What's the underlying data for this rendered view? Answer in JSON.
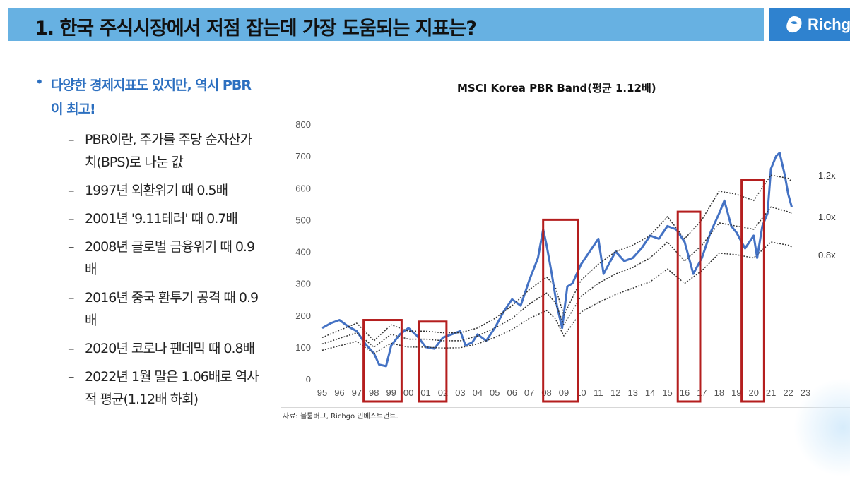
{
  "header": {
    "title": "1. 한국 주식시장에서 저점 잡는데 가장 도움되는 지표는?",
    "logo_text": "Richgo"
  },
  "bullets": {
    "main": "다양한 경제지표도 있지만, 역시 PBR이 최고!",
    "sub": [
      "PBR이란, 주가를 주당 순자산가치(BPS)로 나눈 값",
      "1997년 외환위기 때 0.5배",
      "2001년 '9.11테러' 때 0.7배",
      "2008년 글로벌 금융위기 때 0.9배",
      "2016년 중국 환투기 공격 때 0.9배",
      "2020년 코로나 팬데믹 때 0.8배",
      "2022년 1월 말은 1.06배로 역사적 평균(1.12배 하회)"
    ]
  },
  "source": "자료: 블룸버그, Richgo 인베스트먼트.",
  "colors": {
    "title_bar": "#67b1e2",
    "logo_bg": "#2f82cf",
    "accent_text": "#2c6fc0",
    "series_line": "#4472c4",
    "highlight_box": "#b41e1e"
  },
  "chart_data": {
    "type": "line",
    "title": "MSCI Korea PBR Band(평균 1.12배)",
    "xlabel": "",
    "ylabel": "",
    "ylim": [
      0,
      800
    ],
    "yticks": [
      0,
      100,
      200,
      300,
      400,
      500,
      600,
      700,
      800
    ],
    "xlim": [
      1995,
      2023
    ],
    "xtick_labels": [
      "95",
      "96",
      "97",
      "98",
      "99",
      "00",
      "01",
      "02",
      "03",
      "04",
      "05",
      "06",
      "07",
      "08",
      "09",
      "10",
      "11",
      "12",
      "13",
      "14",
      "15",
      "16",
      "17",
      "18",
      "19",
      "20",
      "21",
      "22",
      "23"
    ],
    "grid": false,
    "series": [
      {
        "name": "MSCI Korea",
        "style": "solid",
        "x": [
          1995.0,
          1995.5,
          1996.0,
          1996.5,
          1997.0,
          1997.5,
          1998.0,
          1998.3,
          1998.7,
          1999.0,
          1999.5,
          2000.0,
          2000.5,
          2001.0,
          2001.5,
          2002.0,
          2002.5,
          2003.0,
          2003.3,
          2003.7,
          2004.0,
          2004.5,
          2005.0,
          2005.5,
          2006.0,
          2006.5,
          2007.0,
          2007.5,
          2007.8,
          2008.0,
          2008.3,
          2008.6,
          2008.9,
          2009.2,
          2009.5,
          2010.0,
          2010.5,
          2011.0,
          2011.3,
          2011.7,
          2012.0,
          2012.5,
          2013.0,
          2013.5,
          2014.0,
          2014.5,
          2015.0,
          2015.5,
          2016.0,
          2016.5,
          2017.0,
          2017.5,
          2018.0,
          2018.3,
          2018.7,
          2019.0,
          2019.5,
          2020.0,
          2020.2,
          2020.5,
          2020.8,
          2021.0,
          2021.3,
          2021.5,
          2021.8,
          2022.0,
          2022.2
        ],
        "y": [
          160,
          175,
          185,
          165,
          150,
          110,
          80,
          45,
          40,
          105,
          140,
          160,
          135,
          100,
          95,
          130,
          140,
          150,
          105,
          115,
          140,
          120,
          160,
          210,
          250,
          230,
          310,
          380,
          470,
          420,
          330,
          230,
          160,
          290,
          300,
          360,
          400,
          440,
          330,
          370,
          400,
          370,
          380,
          410,
          450,
          440,
          480,
          470,
          430,
          330,
          380,
          460,
          520,
          560,
          480,
          460,
          410,
          450,
          380,
          480,
          520,
          660,
          700,
          710,
          640,
          580,
          540
        ]
      },
      {
        "name": "1.2x",
        "style": "dotted",
        "x": [
          1995.0,
          1997.0,
          1998.0,
          1999.0,
          2000.0,
          2001.0,
          2002.0,
          2003.0,
          2004.0,
          2005.0,
          2006.0,
          2007.0,
          2008.0,
          2008.5,
          2009.0,
          2010.0,
          2011.0,
          2012.0,
          2013.0,
          2014.0,
          2015.0,
          2016.0,
          2017.0,
          2018.0,
          2019.0,
          2020.0,
          2021.0,
          2022.0,
          2022.2
        ],
        "y": [
          130,
          175,
          120,
          170,
          150,
          150,
          145,
          145,
          160,
          190,
          230,
          280,
          320,
          290,
          200,
          310,
          360,
          400,
          420,
          450,
          510,
          440,
          500,
          590,
          580,
          560,
          640,
          630,
          620
        ]
      },
      {
        "name": "1.0x",
        "style": "dotted",
        "x": [
          1995.0,
          1997.0,
          1998.0,
          1999.0,
          2000.0,
          2001.0,
          2002.0,
          2003.0,
          2004.0,
          2005.0,
          2006.0,
          2007.0,
          2008.0,
          2008.5,
          2009.0,
          2010.0,
          2011.0,
          2012.0,
          2013.0,
          2014.0,
          2015.0,
          2016.0,
          2017.0,
          2018.0,
          2019.0,
          2020.0,
          2021.0,
          2022.0,
          2022.2
        ],
        "y": [
          110,
          145,
          100,
          140,
          125,
          125,
          120,
          120,
          135,
          160,
          190,
          235,
          270,
          240,
          170,
          260,
          300,
          330,
          350,
          380,
          430,
          370,
          420,
          490,
          480,
          470,
          540,
          525,
          520
        ]
      },
      {
        "name": "0.8x",
        "style": "dotted",
        "x": [
          1995.0,
          1997.0,
          1998.0,
          1999.0,
          2000.0,
          2001.0,
          2002.0,
          2003.0,
          2004.0,
          2005.0,
          2006.0,
          2007.0,
          2008.0,
          2008.5,
          2009.0,
          2010.0,
          2011.0,
          2012.0,
          2013.0,
          2014.0,
          2015.0,
          2016.0,
          2017.0,
          2018.0,
          2019.0,
          2020.0,
          2021.0,
          2022.0,
          2022.2
        ],
        "y": [
          90,
          118,
          80,
          112,
          100,
          100,
          97,
          98,
          110,
          130,
          155,
          190,
          215,
          190,
          135,
          210,
          240,
          265,
          285,
          305,
          345,
          300,
          340,
          395,
          390,
          380,
          430,
          420,
          415
        ]
      }
    ],
    "highlights": [
      {
        "x_start": 1997.4,
        "x_end": 1999.6,
        "y_top": 185
      },
      {
        "x_start": 2000.6,
        "x_end": 2002.2,
        "y_top": 180
      },
      {
        "x_start": 2007.8,
        "x_end": 2009.8,
        "y_top": 500
      },
      {
        "x_start": 2015.6,
        "x_end": 2016.9,
        "y_top": 525
      },
      {
        "x_start": 2019.3,
        "x_end": 2020.6,
        "y_top": 625
      }
    ],
    "line_labels": [
      {
        "text": "1.2x",
        "y": 640
      },
      {
        "text": "1.0x",
        "y": 510
      },
      {
        "text": "0.8x",
        "y": 390
      }
    ]
  }
}
